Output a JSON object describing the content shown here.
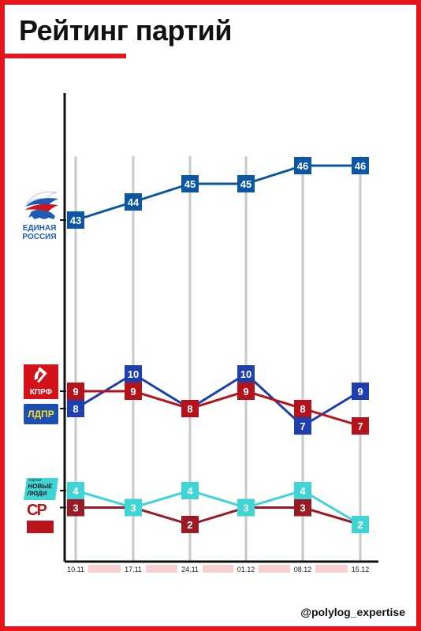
{
  "title": "Рейтинг партий",
  "handle": "@polylog_expertise",
  "logos": {
    "er_line1": "ЕДИНАЯ",
    "er_line2": "РОССИЯ",
    "kprf": "КПРФ",
    "ldpr": "ЛДПР",
    "nl_top": "партия",
    "nl_line1": "НОВЫЕ",
    "nl_line2": "ЛЮДИ",
    "sr_letters": "СР"
  },
  "colors": {
    "frame": "#e8141b",
    "er": "#0d56a3",
    "kprf": "#b5121b",
    "ldpr": "#1e3fae",
    "new_people": "#40d4d4",
    "sr": "#9b1b24",
    "grid": "#c9c9c9",
    "axis": "#111111",
    "date_highlight": "#f7d0d0"
  },
  "chart_data": {
    "type": "line",
    "title": "Рейтинг партий",
    "x": [
      "10.11",
      "17.11",
      "24.11",
      "01.12",
      "08.12",
      "15.12"
    ],
    "grid": "vertical",
    "series": [
      {
        "name": "ЕДИНАЯ РОССИЯ",
        "color": "#0d56a3",
        "values": [
          43,
          44,
          45,
          45,
          46,
          46
        ]
      },
      {
        "name": "КПРФ",
        "color": "#b5121b",
        "values": [
          9,
          9,
          8,
          9,
          8,
          7
        ]
      },
      {
        "name": "ЛДПР",
        "color": "#1e3fae",
        "values": [
          8,
          10,
          8,
          10,
          7,
          9
        ]
      },
      {
        "name": "НОВЫЕ ЛЮДИ",
        "color": "#40d4d4",
        "values": [
          4,
          3,
          4,
          3,
          4,
          2
        ]
      },
      {
        "name": "СР",
        "color": "#9b1b24",
        "values": [
          3,
          3,
          2,
          3,
          3,
          2
        ]
      }
    ]
  }
}
